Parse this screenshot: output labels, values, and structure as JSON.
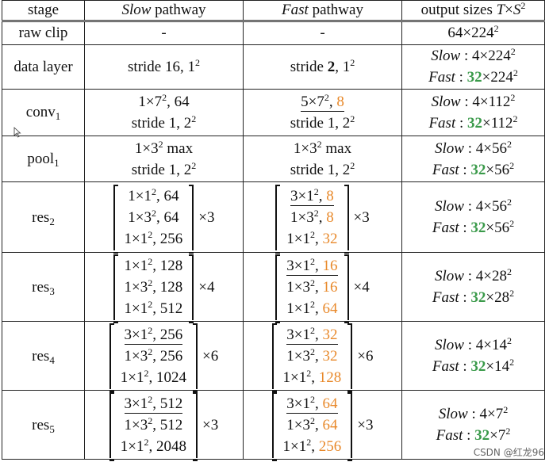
{
  "table": {
    "header": {
      "stage": "stage",
      "slow_word": "Slow",
      "slow_rest": " pathway",
      "fast_word": "Fast",
      "fast_rest": " pathway",
      "output": "output sizes ",
      "output_math_T": "T",
      "output_math_x": "×",
      "output_math_S": "S",
      "output_math_sq": "2"
    },
    "rows": [
      {
        "stage": "raw clip",
        "slow": "-",
        "fast": "-",
        "out_base": "64×224",
        "out_sup": "2"
      },
      {
        "stage": "data layer",
        "slow_a": "stride 16, 1",
        "slow_sup": "2",
        "fast_a": "stride ",
        "fast_bold": "2",
        "fast_b": ", 1",
        "fast_sup": "2",
        "out_slow_label": "Slow",
        "out_slow_val": " : 4×224",
        "out_slow_sup": "2",
        "out_fast_label": "Fast",
        "out_fast_pre": " : ",
        "out_fast_green": "32",
        "out_fast_val": "×224",
        "out_fast_sup": "2"
      },
      {
        "stage_base": "conv",
        "stage_sub": "1",
        "slow_l1a": "1×7",
        "slow_l1sup": "2",
        "slow_l1b": ", 64",
        "slow_l2a": "stride 1, 2",
        "slow_l2sup": "2",
        "fast_l1a": "5×7",
        "fast_l1sup": "2",
        "fast_l1b": ", ",
        "fast_l1o": "8",
        "fast_l2a": "stride 1, 2",
        "fast_l2sup": "2",
        "out_slow_label": "Slow",
        "out_slow_val": " : 4×112",
        "out_slow_sup": "2",
        "out_fast_label": "Fast",
        "out_fast_pre": " : ",
        "out_fast_green": "32",
        "out_fast_val": "×112",
        "out_fast_sup": "2"
      },
      {
        "stage_base": "pool",
        "stage_sub": "1",
        "slow_l1a": "1×3",
        "slow_l1sup": "2",
        "slow_l1b": " max",
        "slow_l2a": "stride 1, 2",
        "slow_l2sup": "2",
        "fast_l1a": "1×3",
        "fast_l1sup": "2",
        "fast_l1b": " max",
        "fast_l2a": "stride 1, 2",
        "fast_l2sup": "2",
        "out_slow_label": "Slow",
        "out_slow_val": " : 4×56",
        "out_slow_sup": "2",
        "out_fast_label": "Fast",
        "out_fast_pre": " : ",
        "out_fast_green": "32",
        "out_fast_val": "×56",
        "out_fast_sup": "2"
      },
      {
        "stage_base": "res",
        "stage_sub": "2",
        "slow": [
          [
            "1×1",
            "2",
            ", 64"
          ],
          [
            "1×3",
            "2",
            ", 64"
          ],
          [
            "1×1",
            "2",
            ", 256"
          ]
        ],
        "slow_mult": "×3",
        "fast": [
          [
            "3×1",
            "2",
            ", ",
            "8"
          ],
          [
            "1×3",
            "2",
            ", ",
            "8"
          ],
          [
            "1×1",
            "2",
            ", ",
            "32"
          ]
        ],
        "fast_mult": "×3",
        "out_slow_label": "Slow",
        "out_slow_val": " : 4×56",
        "out_slow_sup": "2",
        "out_fast_label": "Fast",
        "out_fast_pre": " : ",
        "out_fast_green": "32",
        "out_fast_val": "×56",
        "out_fast_sup": "2"
      },
      {
        "stage_base": "res",
        "stage_sub": "3",
        "slow": [
          [
            "1×1",
            "2",
            ", 128"
          ],
          [
            "1×3",
            "2",
            ", 128"
          ],
          [
            "1×1",
            "2",
            ", 512"
          ]
        ],
        "slow_mult": "×4",
        "fast": [
          [
            "3×1",
            "2",
            ", ",
            "16"
          ],
          [
            "1×3",
            "2",
            ", ",
            "16"
          ],
          [
            "1×1",
            "2",
            ", ",
            "64"
          ]
        ],
        "fast_mult": "×4",
        "out_slow_label": "Slow",
        "out_slow_val": " : 4×28",
        "out_slow_sup": "2",
        "out_fast_label": "Fast",
        "out_fast_pre": " : ",
        "out_fast_green": "32",
        "out_fast_val": "×28",
        "out_fast_sup": "2"
      },
      {
        "stage_base": "res",
        "stage_sub": "4",
        "slow": [
          [
            "3×1",
            "2",
            ", 256"
          ],
          [
            "1×3",
            "2",
            ", 256"
          ],
          [
            "1×1",
            "2",
            ", 1024"
          ]
        ],
        "slow_mult": "×6",
        "fast": [
          [
            "3×1",
            "2",
            ", ",
            "32"
          ],
          [
            "1×3",
            "2",
            ", ",
            "32"
          ],
          [
            "1×1",
            "2",
            ", ",
            "128"
          ]
        ],
        "fast_mult": "×6",
        "out_slow_label": "Slow",
        "out_slow_val": " : 4×14",
        "out_slow_sup": "2",
        "out_fast_label": "Fast",
        "out_fast_pre": " : ",
        "out_fast_green": "32",
        "out_fast_val": "×14",
        "out_fast_sup": "2"
      },
      {
        "stage_base": "res",
        "stage_sub": "5",
        "slow": [
          [
            "3×1",
            "2",
            ", 512"
          ],
          [
            "1×3",
            "2",
            ", 512"
          ],
          [
            "1×1",
            "2",
            ", 2048"
          ]
        ],
        "slow_mult": "×3",
        "fast": [
          [
            "3×1",
            "2",
            ", ",
            "64"
          ],
          [
            "1×3",
            "2",
            ", ",
            "64"
          ],
          [
            "1×1",
            "2",
            ", ",
            "256"
          ]
        ],
        "fast_mult": "×3",
        "out_slow_label": "Slow",
        "out_slow_val": " : 4×7",
        "out_slow_sup": "2",
        "out_fast_label": "Fast",
        "out_fast_pre": " : ",
        "out_fast_green": "32",
        "out_fast_val": "×7",
        "out_fast_sup": "2"
      }
    ]
  },
  "watermark": "CSDN @红龙96",
  "colors": {
    "orange": "#e8892b",
    "green": "#3a9a4a"
  },
  "icons": {
    "cursor": "mouse-cursor-icon"
  }
}
